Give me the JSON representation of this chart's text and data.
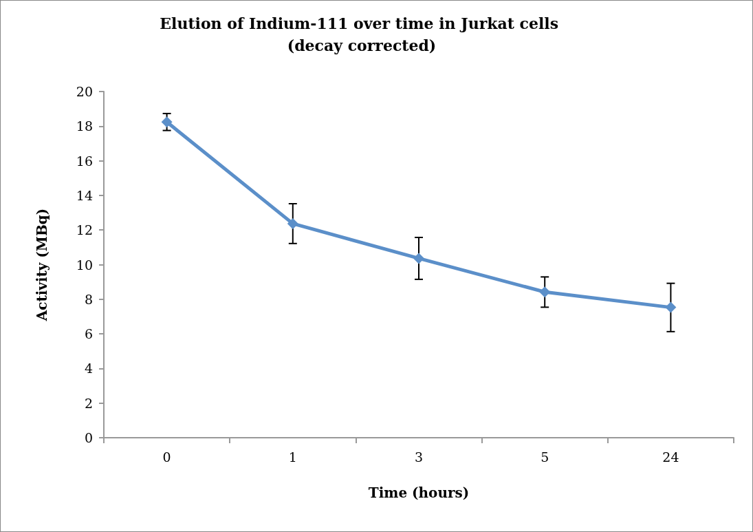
{
  "chart_data": {
    "type": "line",
    "title": "Elution of Indium-111 over time in Jurkat cells (decay corrected)",
    "xlabel": "Time (hours)",
    "ylabel": "Activity (MBq)",
    "categories": [
      "0",
      "1",
      "3",
      "5",
      "24"
    ],
    "series": [
      {
        "color": "#5b8fc9",
        "values": [
          18.24,
          12.37,
          10.36,
          8.42,
          7.53
        ],
        "errors": [
          [
            17.75,
            18.73
          ],
          [
            11.22,
            13.52
          ],
          [
            9.15,
            11.57
          ],
          [
            7.54,
            9.29
          ],
          [
            6.13,
            8.92
          ]
        ]
      }
    ],
    "ylim": [
      0,
      20
    ],
    "yticks": [
      0,
      2,
      4,
      6,
      8,
      10,
      12,
      14,
      16,
      18,
      20
    ],
    "grid": false,
    "marker": "diamond",
    "line_style": "solid"
  }
}
